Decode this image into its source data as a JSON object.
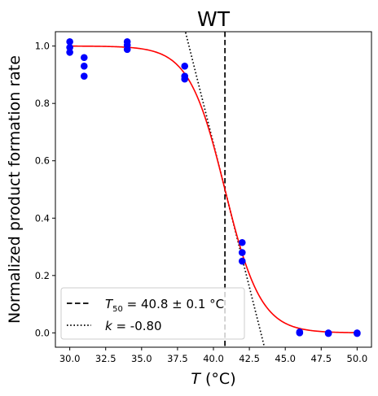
{
  "chart_data": {
    "type": "scatter",
    "title": "WT",
    "xlabel_var": "T",
    "xlabel_unit": " (°C)",
    "ylabel": "Normalized product formation rate",
    "xlim": [
      29.0,
      51.0
    ],
    "ylim": [
      -0.05,
      1.05
    ],
    "x_ticks": [
      30.0,
      32.5,
      35.0,
      37.5,
      40.0,
      42.5,
      45.0,
      47.5,
      50.0
    ],
    "x_tick_labels": [
      "30.0",
      "32.5",
      "35.0",
      "37.5",
      "40.0",
      "42.5",
      "45.0",
      "47.5",
      "50.0"
    ],
    "y_ticks": [
      0.0,
      0.2,
      0.4,
      0.6,
      0.8,
      1.0
    ],
    "y_tick_labels": [
      "0.0",
      "0.2",
      "0.4",
      "0.6",
      "0.8",
      "1.0"
    ],
    "grid": false,
    "points": {
      "color": "#0000ff",
      "x": [
        30,
        30,
        30,
        31,
        31,
        31,
        34,
        34,
        34,
        38,
        38,
        38,
        42,
        42,
        42,
        46,
        46,
        48,
        48,
        50,
        50
      ],
      "y": [
        1.015,
        0.995,
        0.978,
        0.96,
        0.93,
        0.895,
        1.015,
        1.003,
        0.988,
        0.93,
        0.895,
        0.885,
        0.315,
        0.28,
        0.25,
        0.003,
        0.0,
        0.0,
        -0.002,
        0.0,
        -0.002
      ]
    },
    "fit_curve": {
      "color": "#ff0000",
      "model": "sigmoid",
      "T50": 40.8,
      "k": -0.8
    },
    "t50_line": {
      "x": 40.8,
      "style": "dashed",
      "color": "#000000"
    },
    "slope_line": {
      "style": "dotted",
      "color": "#000000",
      "slope": -0.2,
      "through": [
        40.8,
        0.5
      ]
    },
    "legend": {
      "placement": "lower-left",
      "entries": [
        {
          "style": "dashed",
          "var": "T",
          "sub": "50",
          "text": " = 40.8 ± 0.1 °C"
        },
        {
          "style": "dotted",
          "var": "k",
          "sub": "",
          "text": " = -0.80"
        }
      ]
    }
  }
}
